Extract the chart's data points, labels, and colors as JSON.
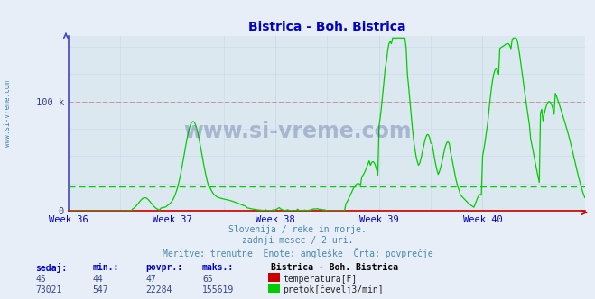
{
  "title": "Bistrica - Boh. Bistrica",
  "title_color": "#0000cc",
  "bg_color": "#e8eef8",
  "plot_bg_color": "#dce8f0",
  "grid_color_major": "#ffffff",
  "grid_color_minor": "#ccddee",
  "spine_color_left": "#4444cc",
  "spine_color_bottom": "#cc0000",
  "xlabel_weeks": [
    "Week 36",
    "Week 37",
    "Week 38",
    "Week 39",
    "Week 40"
  ],
  "y_max": 160000,
  "y_min": 0,
  "avg_flow_value": 22284,
  "avg_temp_value": 47,
  "subtitle_lines": [
    "Slovenija / reke in morje.",
    "zadnji mesec / 2 uri.",
    "Meritve: trenutne  Enote: angleške  Črta: povprečje"
  ],
  "table_headers": [
    "sedaj:",
    "min.:",
    "povpr.:",
    "maks.:"
  ],
  "row1_vals": [
    "45",
    "44",
    "47",
    "65"
  ],
  "row2_vals": [
    "73021",
    "547",
    "22284",
    "155619"
  ],
  "legend_title": "Bistrica - Boh. Bistrica",
  "legend_items": [
    "temperatura[F]",
    "pretok[čevelj3/min]"
  ],
  "legend_colors": [
    "#cc0000",
    "#00cc00"
  ],
  "temp_color": "#cc0000",
  "flow_color": "#00cc00",
  "avg_flow_color": "#00cc00",
  "avg_temp_color": "#cc0000",
  "watermark_text": "www.si-vreme.com",
  "watermark_color": "#334488",
  "subtitle_color": "#4488aa",
  "header_color": "#0000cc",
  "value_color": "#334488",
  "ylabel_color": "#334488",
  "xtick_color": "#0000cc",
  "side_text_color": "#4488aa"
}
